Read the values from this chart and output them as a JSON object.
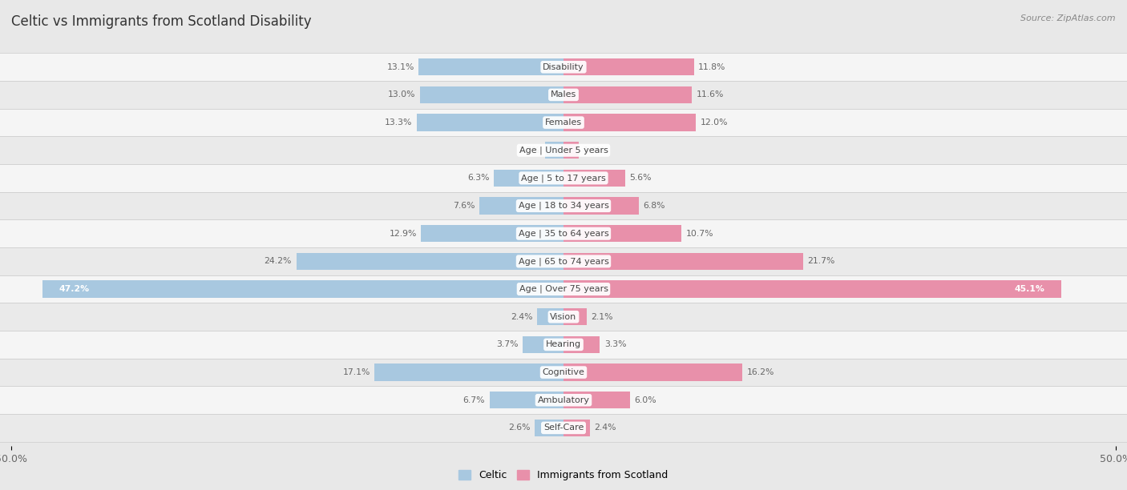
{
  "title": "Celtic vs Immigrants from Scotland Disability",
  "source": "Source: ZipAtlas.com",
  "categories": [
    "Disability",
    "Males",
    "Females",
    "Age | Under 5 years",
    "Age | 5 to 17 years",
    "Age | 18 to 34 years",
    "Age | 35 to 64 years",
    "Age | 65 to 74 years",
    "Age | Over 75 years",
    "Vision",
    "Hearing",
    "Cognitive",
    "Ambulatory",
    "Self-Care"
  ],
  "celtic_values": [
    13.1,
    13.0,
    13.3,
    1.7,
    6.3,
    7.6,
    12.9,
    24.2,
    47.2,
    2.4,
    3.7,
    17.1,
    6.7,
    2.6
  ],
  "immigrant_values": [
    11.8,
    11.6,
    12.0,
    1.4,
    5.6,
    6.8,
    10.7,
    21.7,
    45.1,
    2.1,
    3.3,
    16.2,
    6.0,
    2.4
  ],
  "celtic_color": "#a8c8e0",
  "immigrant_color": "#e890aa",
  "axis_limit": 50.0,
  "legend_celtic": "Celtic",
  "legend_immigrant": "Immigrants from Scotland",
  "background_color": "#e8e8e8",
  "row_color_odd": "#f5f5f5",
  "row_color_even": "#eaeaea",
  "bar_height": 0.62,
  "title_fontsize": 12,
  "label_fontsize": 8.0,
  "value_fontsize": 7.8,
  "inside_label_idx": 8
}
